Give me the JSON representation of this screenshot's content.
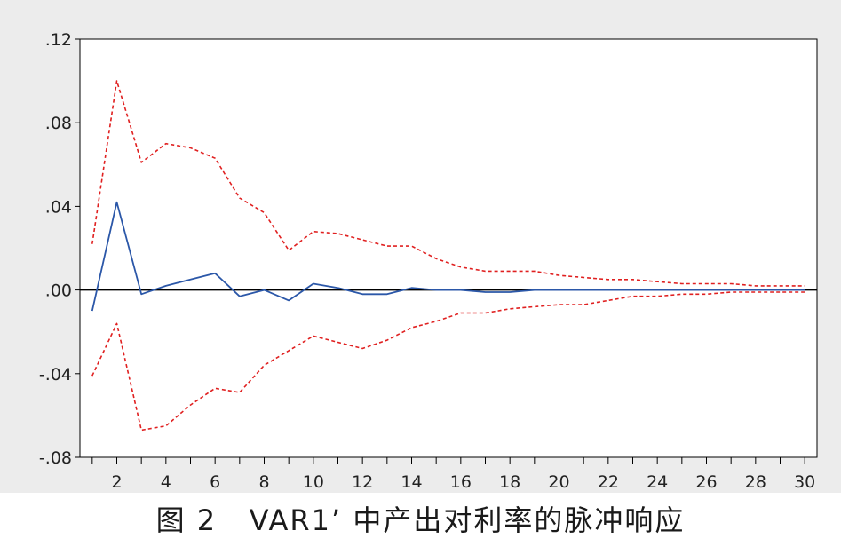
{
  "caption": "图 2   VAR1’ 中产出对利率的脉冲响应",
  "colors": {
    "response": "#2b57a8",
    "bands": "#e02020",
    "zero_line": "#000000",
    "axis": "#000000",
    "plot_bg": "#ffffff",
    "frame_bg": "#ececec"
  },
  "chart_data": {
    "type": "line",
    "title": "",
    "xlabel": "",
    "ylabel": "",
    "xlim": [
      0.5,
      30.5
    ],
    "ylim": [
      -0.08,
      0.12
    ],
    "yticks": [
      -0.08,
      -0.04,
      0.0,
      0.04,
      0.08,
      0.12
    ],
    "ytick_labels": [
      "-.08",
      "-.04",
      ".00",
      ".04",
      ".08",
      ".12"
    ],
    "xticks": [
      2,
      4,
      6,
      8,
      10,
      12,
      14,
      16,
      18,
      20,
      22,
      24,
      26,
      28,
      30
    ],
    "xtick_labels": [
      "2",
      "4",
      "6",
      "8",
      "10",
      "12",
      "14",
      "16",
      "18",
      "20",
      "22",
      "24",
      "26",
      "28",
      "30"
    ],
    "grid": false,
    "zero_line": true,
    "x": [
      1,
      2,
      3,
      4,
      5,
      6,
      7,
      8,
      9,
      10,
      11,
      12,
      13,
      14,
      15,
      16,
      17,
      18,
      19,
      20,
      21,
      22,
      23,
      24,
      25,
      26,
      27,
      28,
      29,
      30
    ],
    "series": [
      {
        "style": "solid",
        "values": [
          -0.01,
          0.042,
          -0.002,
          0.002,
          0.005,
          0.008,
          -0.003,
          0.0,
          -0.005,
          0.003,
          0.001,
          -0.002,
          -0.002,
          0.001,
          0.0,
          0.0,
          -0.001,
          -0.001,
          0.0,
          0.0,
          0.0,
          0.0,
          0.0,
          0.0,
          0.0,
          0.0,
          0.0,
          0.0,
          0.0,
          0.0
        ]
      },
      {
        "style": "dashed",
        "values": [
          0.022,
          0.1,
          0.061,
          0.07,
          0.068,
          0.063,
          0.044,
          0.037,
          0.019,
          0.028,
          0.027,
          0.024,
          0.021,
          0.021,
          0.015,
          0.011,
          0.009,
          0.009,
          0.009,
          0.007,
          0.006,
          0.005,
          0.005,
          0.004,
          0.003,
          0.003,
          0.003,
          0.002,
          0.002,
          0.002
        ]
      },
      {
        "style": "dashed",
        "values": [
          -0.041,
          -0.016,
          -0.067,
          -0.065,
          -0.055,
          -0.047,
          -0.049,
          -0.036,
          -0.029,
          -0.022,
          -0.025,
          -0.028,
          -0.024,
          -0.018,
          -0.015,
          -0.011,
          -0.011,
          -0.009,
          -0.008,
          -0.007,
          -0.007,
          -0.005,
          -0.003,
          -0.003,
          -0.002,
          -0.002,
          -0.001,
          -0.001,
          -0.001,
          -0.001
        ]
      }
    ]
  }
}
